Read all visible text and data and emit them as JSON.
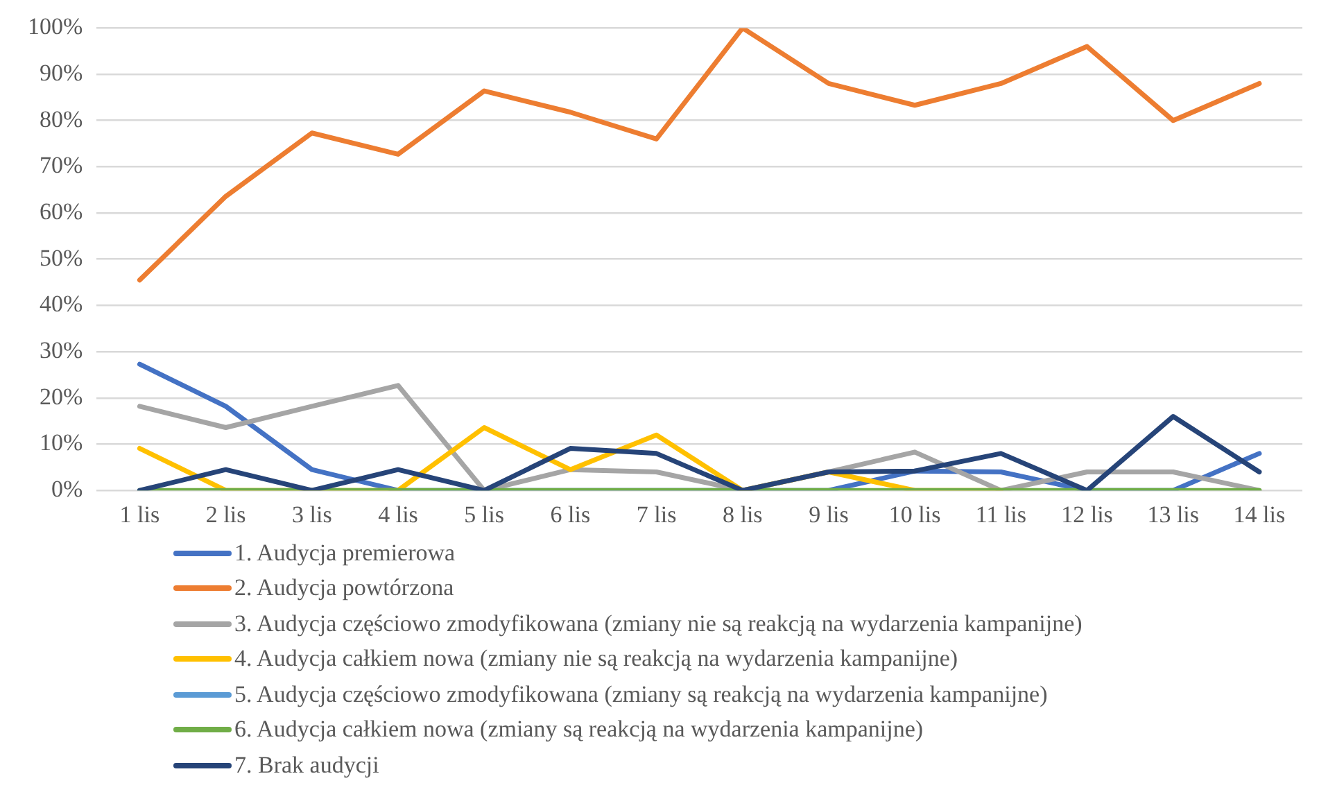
{
  "chart_data": {
    "type": "line",
    "categories": [
      "1 lis",
      "2 lis",
      "3 lis",
      "4 lis",
      "5 lis",
      "6 lis",
      "7 lis",
      "8 lis",
      "9 lis",
      "10 lis",
      "11 lis",
      "12 lis",
      "13 lis",
      "14 lis"
    ],
    "ylim": [
      0,
      100
    ],
    "yticks": [
      {
        "value": 0,
        "label": "0%"
      },
      {
        "value": 10,
        "label": "10%"
      },
      {
        "value": 20,
        "label": "20%"
      },
      {
        "value": 30,
        "label": "30%"
      },
      {
        "value": 40,
        "label": "40%"
      },
      {
        "value": 50,
        "label": "50%"
      },
      {
        "value": 60,
        "label": "60%"
      },
      {
        "value": 70,
        "label": "70%"
      },
      {
        "value": 80,
        "label": "80%"
      },
      {
        "value": 90,
        "label": "90%"
      },
      {
        "value": 100,
        "label": "100%"
      }
    ],
    "grid": "y",
    "legend": "bottom",
    "marker": "none",
    "line_style": "solid",
    "series": [
      {
        "name": "1. Audycja premierowa",
        "color": "#4472c4",
        "values": [
          27.3,
          18.2,
          4.5,
          0,
          0,
          0,
          0,
          0,
          0,
          4.2,
          4,
          0,
          0,
          8
        ]
      },
      {
        "name": "2. Audycja powtórzona",
        "color": "#ed7d31",
        "values": [
          45.5,
          63.6,
          77.3,
          72.7,
          86.4,
          81.8,
          76,
          100,
          88,
          83.3,
          88,
          96,
          80,
          88
        ]
      },
      {
        "name": "3. Audycja częściowo zmodyfikowana (zmiany nie są reakcją na wydarzenia kampanijne)",
        "color": "#a5a5a5",
        "values": [
          18.2,
          13.6,
          18.2,
          22.7,
          0,
          4.5,
          4,
          0,
          4,
          8.3,
          0,
          4,
          4,
          0
        ]
      },
      {
        "name": "4. Audycja całkiem nowa (zmiany nie są reakcją na wydarzenia kampanijne)",
        "color": "#ffc000",
        "values": [
          9.1,
          0,
          0,
          0,
          13.6,
          4.5,
          12,
          0,
          4,
          0,
          0,
          null,
          null,
          null
        ]
      },
      {
        "name": "5. Audycja częściowo zmodyfikowana (zmiany są reakcją na wydarzenia kampanijne)",
        "color": "#5b9bd5",
        "values": [
          null,
          null,
          null,
          null,
          null,
          null,
          null,
          null,
          null,
          null,
          null,
          null,
          null,
          null
        ]
      },
      {
        "name": "6. Audycja całkiem nowa (zmiany są reakcją na wydarzenia kampanijne)",
        "color": "#70ad47",
        "values": [
          0,
          0,
          0,
          0,
          0,
          0,
          0,
          0,
          0,
          0,
          0,
          0,
          0,
          0
        ]
      },
      {
        "name": "7. Brak audycji",
        "color": "#264478",
        "values": [
          0,
          4.5,
          0,
          4.5,
          0,
          9.1,
          8,
          0,
          4,
          4.2,
          8,
          0,
          16,
          4
        ]
      }
    ]
  }
}
